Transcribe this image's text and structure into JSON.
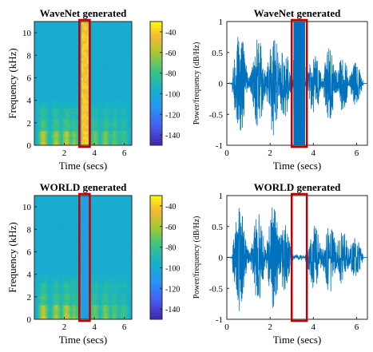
{
  "colors": {
    "highlight": "#c00000",
    "waveform": "#0072bd",
    "spectrogram_low": "#3e26a8",
    "spectrogram_mid": "#16b0ca",
    "spectrogram_high": "#f9fb0e"
  },
  "chart_data": [
    {
      "type": "heatmap",
      "title": "WaveNet generated",
      "xlabel": "Time (secs)",
      "ylabel": "Frequency (kHz)",
      "xlim": [
        0,
        6.5
      ],
      "ylim": [
        0,
        11
      ],
      "xticks": [
        "2",
        "4",
        "6"
      ],
      "yticks": [
        "0",
        "2",
        "4",
        "6",
        "8",
        "10"
      ],
      "colorbar": {
        "label": "Power/frequency (dB/Hz)",
        "ticks": [
          "-40",
          "-60",
          "-80",
          "-100",
          "-120",
          "-140"
        ],
        "range": [
          -150,
          -30
        ]
      },
      "highlight_time": [
        3.0,
        3.7
      ]
    },
    {
      "type": "line",
      "title": "WaveNet generated",
      "xlabel": "Time (secs)",
      "xlim": [
        0,
        6.5
      ],
      "ylim": [
        -1,
        1
      ],
      "xticks": [
        "0",
        "2",
        "4",
        "6"
      ],
      "yticks": [
        "1",
        "0.5",
        "0",
        "-0.5",
        "-1"
      ],
      "highlight_time": [
        3.0,
        3.7
      ]
    },
    {
      "type": "heatmap",
      "title": "WORLD generated",
      "xlabel": "Time (secs)",
      "ylabel": "Frequency (kHz)",
      "xlim": [
        0,
        6.5
      ],
      "ylim": [
        0,
        11
      ],
      "xticks": [
        "2",
        "4",
        "6"
      ],
      "yticks": [
        "0",
        "2",
        "4",
        "6",
        "8",
        "10"
      ],
      "colorbar": {
        "label": "Power/frequency (dB/Hz)",
        "ticks": [
          "-40",
          "-60",
          "-80",
          "-100",
          "-120",
          "-140"
        ],
        "range": [
          -150,
          -30
        ]
      },
      "highlight_time": [
        3.0,
        3.7
      ]
    },
    {
      "type": "line",
      "title": "WORLD generated",
      "xlabel": "Time (secs)",
      "xlim": [
        0,
        6.5
      ],
      "ylim": [
        -1,
        1
      ],
      "xticks": [
        "0",
        "2",
        "4",
        "6"
      ],
      "yticks": [
        "1",
        "0.5",
        "0",
        "-0.5",
        "-1"
      ],
      "highlight_time": [
        3.0,
        3.7
      ]
    }
  ]
}
